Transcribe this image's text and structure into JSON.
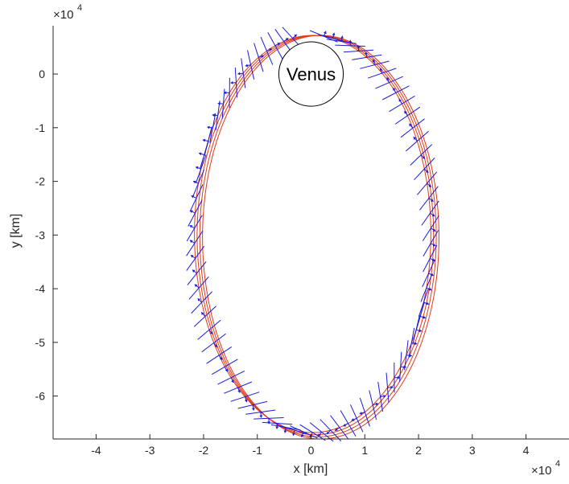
{
  "chart_data": {
    "type": "line",
    "title": "",
    "xlabel": "x [km]",
    "ylabel": "y [km]",
    "xlim": [
      -4.8,
      4.8
    ],
    "ylim": [
      -6.8,
      0.9
    ],
    "axis_scale_x": "×10^4",
    "axis_scale_y": "×10^4",
    "x_ticks": [
      "-4",
      "-3",
      "-2",
      "-1",
      "0",
      "1",
      "2",
      "3",
      "4"
    ],
    "y_ticks": [
      "0",
      "-1",
      "-2",
      "-3",
      "-4",
      "-5",
      "-6"
    ],
    "x_tick_values": [
      -4,
      -3,
      -2,
      -1,
      0,
      1,
      2,
      3,
      4
    ],
    "y_tick_values": [
      0,
      -1,
      -2,
      -3,
      -4,
      -5,
      -6
    ],
    "grid": false,
    "box": "left-bottom axes only",
    "planet": {
      "label": "Venus",
      "center": [
        0.0,
        0.0
      ],
      "radius": 0.6
    },
    "orbit": {
      "color": "#e03a1a",
      "shape": "ellipse",
      "center_offsets_x": [
        0.03,
        0.08,
        0.13,
        0.18
      ],
      "semi_axis_x": 2.2,
      "apoapsis_y": 0.72,
      "periapsis_y_values": [
        -6.68,
        -6.72,
        -6.76,
        -6.8
      ]
    },
    "attitude_markers": {
      "color": "#1a1adc",
      "description": "spacecraft attitude lines with thrust arrows along the orbit",
      "count": 80,
      "line_half_length": 0.28
    },
    "x_scale_label": "×10",
    "x_scale_exp": "4",
    "y_scale_label": "×10",
    "y_scale_exp": "4"
  }
}
